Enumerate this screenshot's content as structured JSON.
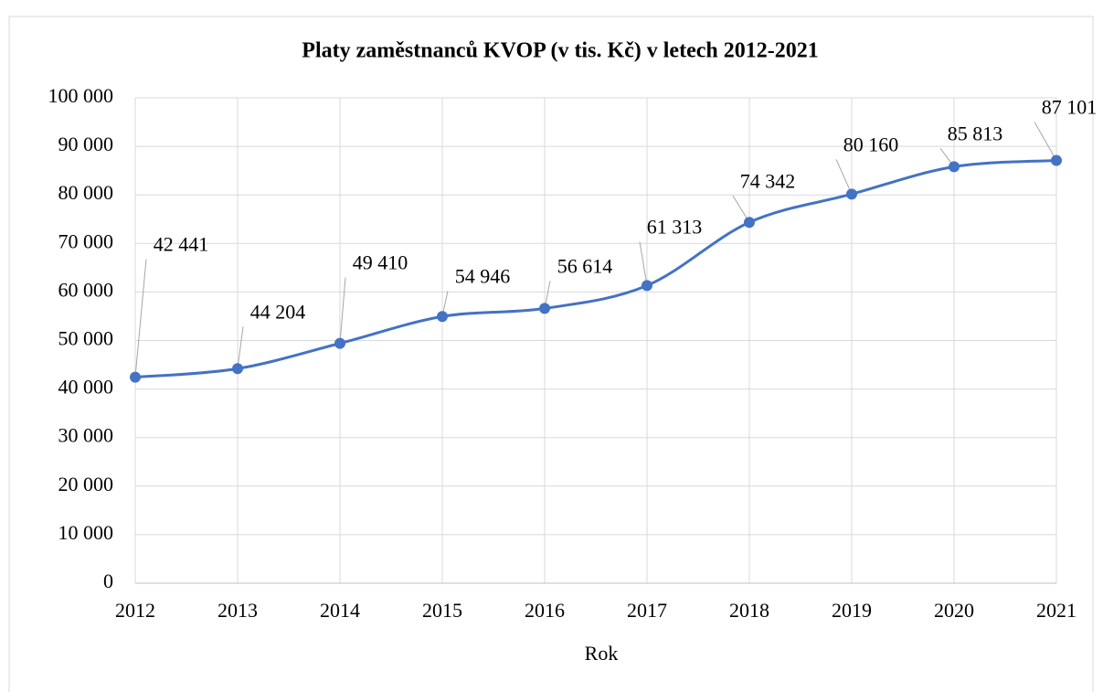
{
  "chart_data": {
    "type": "line",
    "title": "Platy zaměstnanců KVOP (v tis. Kč) v letech 2012-2021",
    "x_label": "Rok",
    "x": [
      2012,
      2013,
      2014,
      2015,
      2016,
      2017,
      2018,
      2019,
      2020,
      2021
    ],
    "xlim": [
      2012,
      2021
    ],
    "xticks": [
      2012,
      2013,
      2014,
      2015,
      2016,
      2017,
      2018,
      2019,
      2020,
      2021
    ],
    "series": [
      {
        "name": "Platy",
        "color": "#4472c4",
        "values": [
          42441,
          44204,
          49410,
          54946,
          56614,
          61313,
          74342,
          80160,
          85813,
          87101
        ],
        "value_labels": [
          "42 441",
          "44 204",
          "49 410",
          "54 946",
          "56 614",
          "61 313",
          "74 342",
          "80 160",
          "85 813",
          "87 101"
        ]
      }
    ],
    "ylim": [
      0,
      100000
    ],
    "yticks": [
      0,
      {
        "value": 10000,
        "label": "10 000"
      },
      {
        "value": 20000,
        "label": "20 000"
      },
      {
        "value": 30000,
        "label": "30 000"
      },
      {
        "value": 40000,
        "label": "40 000"
      },
      {
        "value": 50000,
        "label": "50 000"
      },
      {
        "value": 60000,
        "label": "60 000"
      },
      {
        "value": 70000,
        "label": "70 000"
      },
      {
        "value": 80000,
        "label": "80 000"
      },
      {
        "value": 90000,
        "label": "90 000"
      },
      {
        "value": 100000,
        "label": "100 000"
      }
    ],
    "grid": true,
    "smooth": true
  }
}
